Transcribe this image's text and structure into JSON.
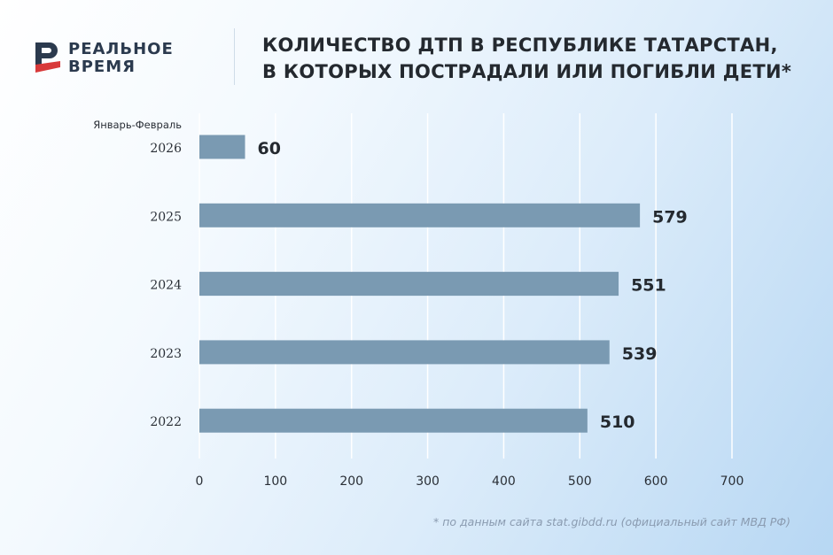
{
  "brand": {
    "line1": "РЕАЛЬНОЕ",
    "line2": "ВРЕМЯ"
  },
  "title_lines": [
    "КОЛИЧЕСТВО ДТП В РЕСПУБЛИКЕ ТАТАРСТАН,",
    "В КОТОРЫХ ПОСТРАДАЛИ ИЛИ ПОГИБЛИ ДЕТИ*"
  ],
  "footnote": "* по данным сайта stat.gibdd.ru (официальный сайт МВД РФ)",
  "colors": {
    "bar": "#7a9ab2",
    "grid": "#ffffff",
    "text": "#24292f",
    "logo_red": "#d83a3a",
    "logo_dark": "#2b3a4e"
  },
  "chart_data": {
    "type": "bar",
    "orientation": "horizontal",
    "title": "КОЛИЧЕСТВО ДТП В РЕСПУБЛИКЕ ТАТАРСТАН, В КОТОРЫХ ПОСТРАДАЛИ ИЛИ ПОГИБЛИ ДЕТИ*",
    "categories": [
      {
        "label": "2026",
        "note": "Январь-Февраль"
      },
      {
        "label": "2025"
      },
      {
        "label": "2024"
      },
      {
        "label": "2023"
      },
      {
        "label": "2022"
      }
    ],
    "values": [
      60,
      579,
      551,
      539,
      510
    ],
    "xlim": [
      0,
      700
    ],
    "xticks": [
      0,
      100,
      200,
      300,
      400,
      500,
      600,
      700
    ],
    "grid": true,
    "xlabel": "",
    "ylabel": ""
  }
}
